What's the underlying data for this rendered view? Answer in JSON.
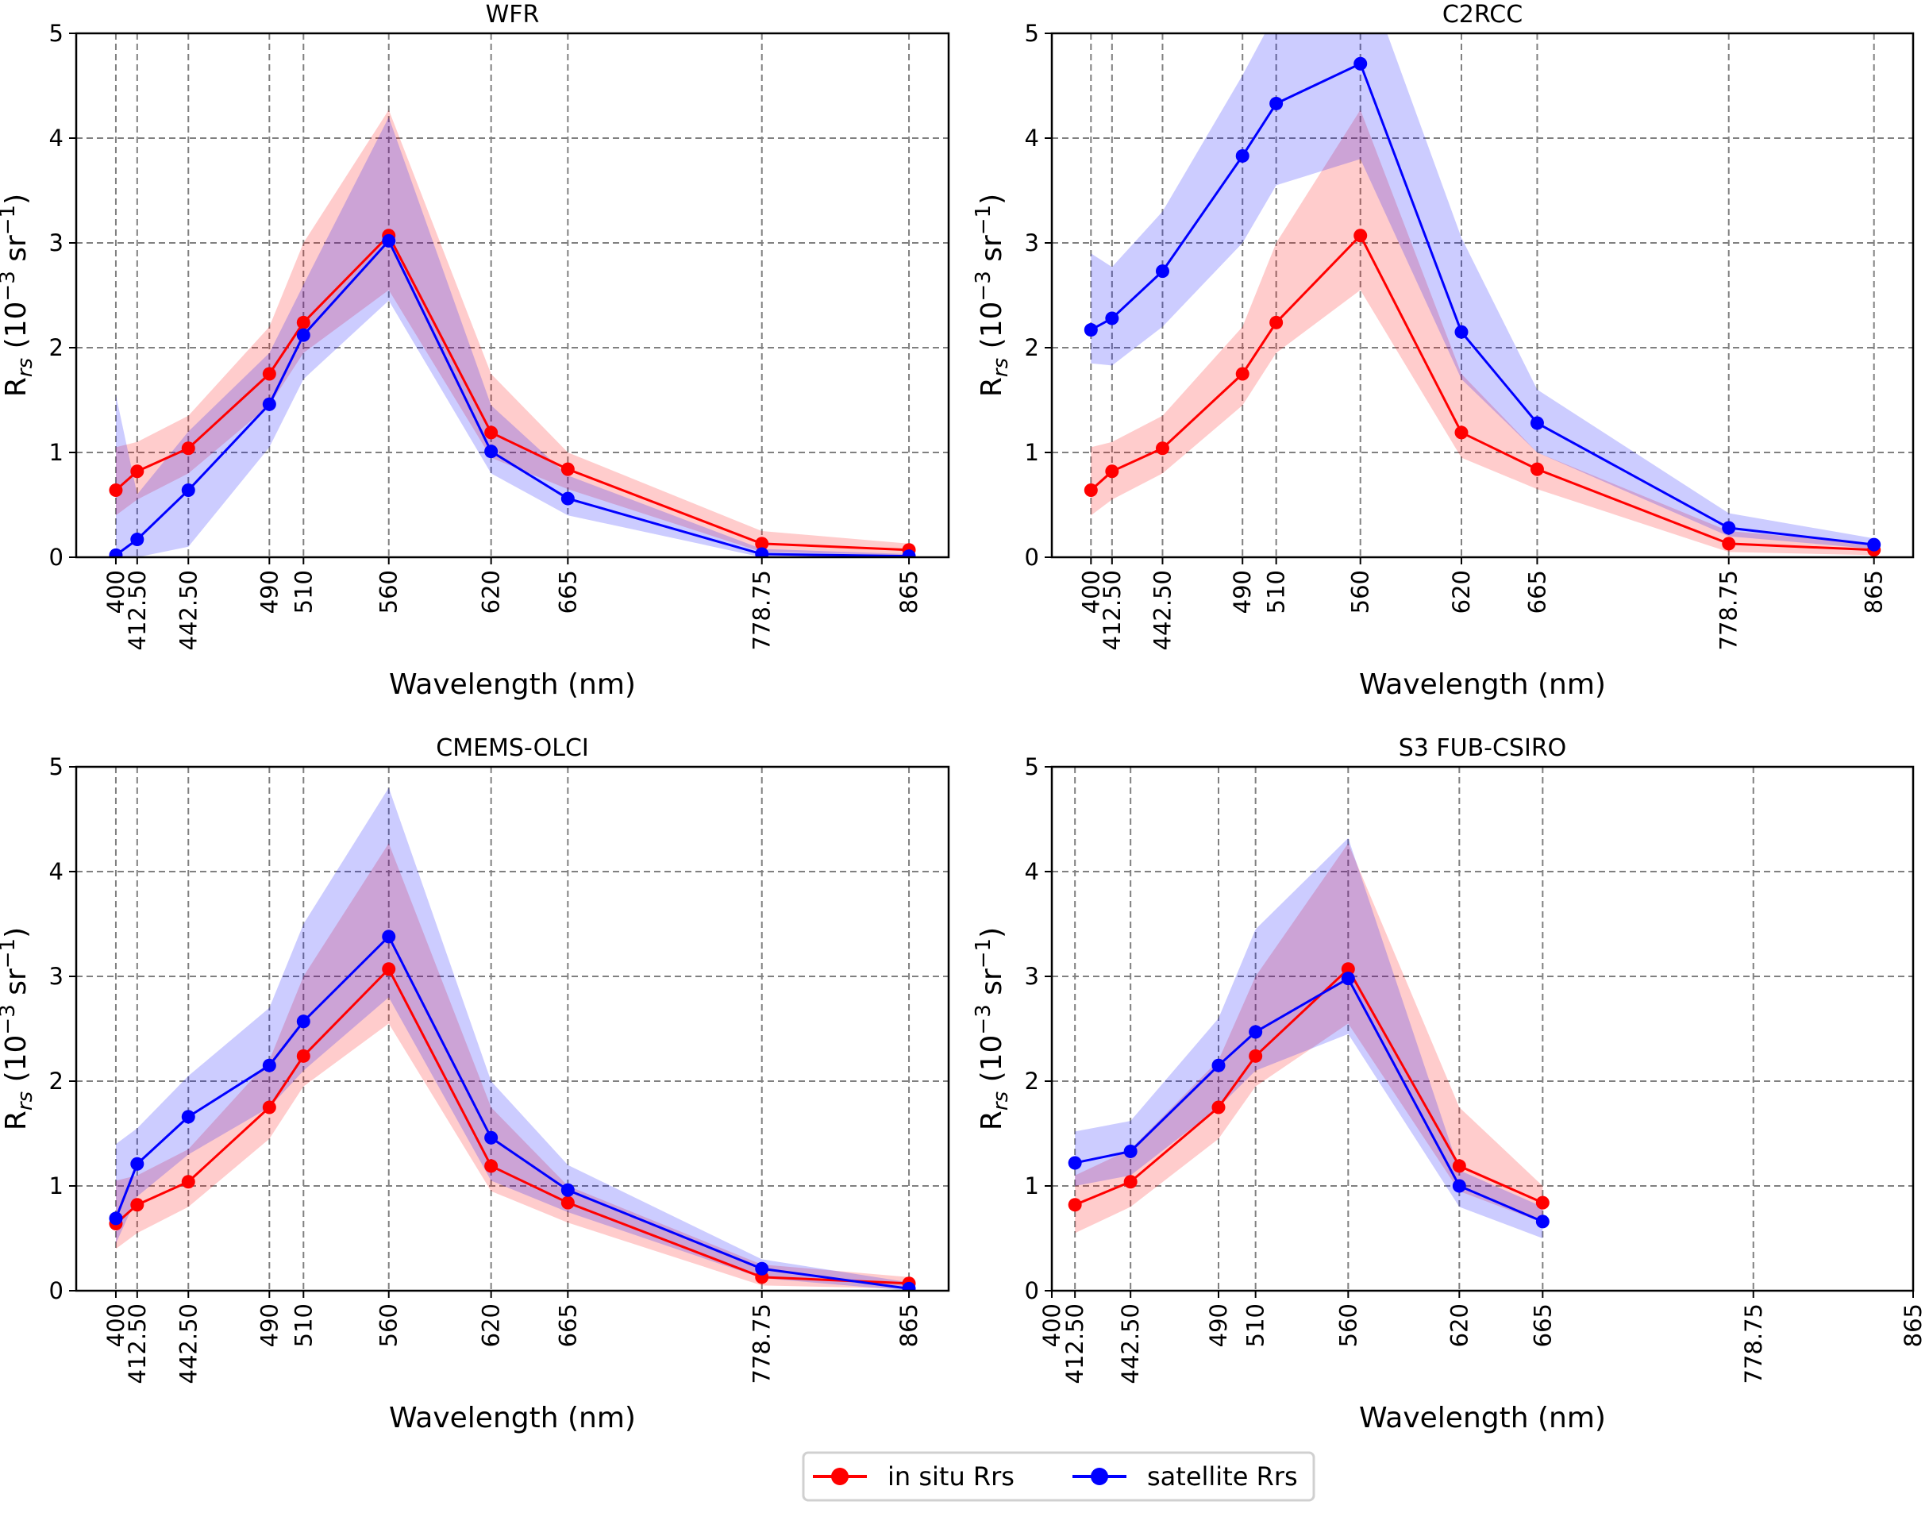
{
  "chart_data": [
    {
      "type": "line",
      "title": "WFR",
      "xlabel": "Wavelength (nm)",
      "ylabel": "R_rs (10^-3 sr^-1)",
      "xlim": [
        376.75,
        888.25
      ],
      "ylim": [
        0,
        5
      ],
      "x": [
        400,
        412.5,
        442.5,
        490,
        510,
        560,
        620,
        665,
        778.75,
        865
      ],
      "xtick_labels": [
        "400",
        "412.50",
        "442.50",
        "490",
        "510",
        "560",
        "620",
        "665",
        "778.75",
        "865"
      ],
      "grid": true,
      "series": [
        {
          "name": "in situ Rrs",
          "values": [
            0.64,
            0.82,
            1.04,
            1.75,
            2.24,
            3.07,
            1.19,
            0.84,
            0.13,
            0.07
          ],
          "lower": [
            0.4,
            0.55,
            0.8,
            1.45,
            1.95,
            2.55,
            0.95,
            0.65,
            0.05,
            0.02
          ],
          "upper": [
            1.05,
            1.1,
            1.35,
            2.2,
            3.0,
            4.27,
            1.75,
            1.0,
            0.25,
            0.13
          ]
        },
        {
          "name": "satellite Rrs",
          "values": [
            0.02,
            0.17,
            0.64,
            1.46,
            2.12,
            3.02,
            1.01,
            0.56,
            0.03,
            0.01
          ],
          "lower": [
            0.0,
            0.0,
            0.1,
            1.05,
            1.7,
            2.45,
            0.8,
            0.4,
            0.0,
            0.0
          ],
          "upper": [
            1.55,
            0.6,
            1.2,
            1.95,
            2.6,
            4.2,
            1.45,
            0.78,
            0.08,
            0.03
          ]
        }
      ]
    },
    {
      "type": "line",
      "title": "C2RCC",
      "xlabel": "Wavelength (nm)",
      "ylabel": "R_rs (10^-3 sr^-1)",
      "xlim": [
        376.75,
        888.25
      ],
      "ylim": [
        0,
        5
      ],
      "x": [
        400,
        412.5,
        442.5,
        490,
        510,
        560,
        620,
        665,
        778.75,
        865
      ],
      "xtick_labels": [
        "400",
        "412.50",
        "442.50",
        "490",
        "510",
        "560",
        "620",
        "665",
        "778.75",
        "865"
      ],
      "grid": true,
      "series": [
        {
          "name": "in situ Rrs",
          "values": [
            0.64,
            0.82,
            1.04,
            1.75,
            2.24,
            3.07,
            1.19,
            0.84,
            0.13,
            0.07
          ],
          "lower": [
            0.4,
            0.55,
            0.8,
            1.45,
            1.95,
            2.55,
            0.95,
            0.65,
            0.05,
            0.02
          ],
          "upper": [
            1.05,
            1.1,
            1.35,
            2.2,
            3.0,
            4.27,
            1.75,
            1.0,
            0.25,
            0.13
          ]
        },
        {
          "name": "satellite Rrs",
          "values": [
            2.17,
            2.28,
            2.73,
            3.83,
            4.33,
            4.71,
            2.15,
            1.28,
            0.28,
            0.12
          ],
          "lower": [
            1.85,
            1.83,
            2.2,
            3.0,
            3.55,
            3.8,
            1.7,
            1.0,
            0.2,
            0.08
          ],
          "upper": [
            2.9,
            2.77,
            3.3,
            4.6,
            5.2,
            5.7,
            3.05,
            1.6,
            0.42,
            0.18
          ]
        }
      ]
    },
    {
      "type": "line",
      "title": "CMEMS-OLCI",
      "xlabel": "Wavelength (nm)",
      "ylabel": "R_rs (10^-3 sr^-1)",
      "xlim": [
        376.75,
        888.25
      ],
      "ylim": [
        0,
        5
      ],
      "x": [
        400,
        412.5,
        442.5,
        490,
        510,
        560,
        620,
        665,
        778.75,
        865
      ],
      "xtick_labels": [
        "400",
        "412.50",
        "442.50",
        "490",
        "510",
        "560",
        "620",
        "665",
        "778.75",
        "865"
      ],
      "grid": true,
      "series": [
        {
          "name": "in situ Rrs",
          "values": [
            0.64,
            0.82,
            1.04,
            1.75,
            2.24,
            3.07,
            1.19,
            0.84,
            0.13,
            0.07
          ],
          "lower": [
            0.4,
            0.55,
            0.8,
            1.45,
            1.95,
            2.55,
            0.95,
            0.65,
            0.05,
            0.02
          ],
          "upper": [
            1.05,
            1.1,
            1.35,
            2.2,
            3.0,
            4.27,
            1.75,
            1.0,
            0.25,
            0.13
          ]
        },
        {
          "name": "satellite Rrs",
          "values": [
            0.69,
            1.21,
            1.66,
            2.15,
            2.57,
            3.38,
            1.46,
            0.96,
            0.21,
            0.02
          ],
          "lower": [
            0.45,
            0.9,
            1.3,
            1.75,
            2.1,
            2.8,
            1.05,
            0.75,
            0.12,
            0.0
          ],
          "upper": [
            1.4,
            1.55,
            2.05,
            2.7,
            3.5,
            4.8,
            2.0,
            1.2,
            0.3,
            0.08
          ]
        }
      ]
    },
    {
      "type": "line",
      "title": "S3 FUB-CSIRO",
      "xlabel": "Wavelength (nm)",
      "ylabel": "R_rs (10^-3 sr^-1)",
      "xlim": [
        400,
        865
      ],
      "ylim": [
        0,
        5
      ],
      "x": [
        400,
        412.5,
        442.5,
        490,
        510,
        560,
        620,
        665,
        778.75,
        865
      ],
      "xtick_labels": [
        "400",
        "412.50",
        "442.50",
        "490",
        "510",
        "560",
        "620",
        "665",
        "778.75",
        "865"
      ],
      "grid": true,
      "series": [
        {
          "name": "in situ Rrs",
          "values": [
            null,
            0.82,
            1.04,
            1.75,
            2.24,
            3.07,
            1.19,
            0.84,
            null,
            null
          ],
          "lower": [
            null,
            0.55,
            0.8,
            1.45,
            1.95,
            2.55,
            0.95,
            0.65,
            null,
            null
          ],
          "upper": [
            null,
            1.1,
            1.35,
            2.2,
            3.0,
            4.27,
            1.75,
            1.0,
            null,
            null
          ]
        },
        {
          "name": "satellite Rrs",
          "values": [
            null,
            1.22,
            1.33,
            2.15,
            2.47,
            2.98,
            1.0,
            0.66,
            null,
            null
          ],
          "lower": [
            null,
            1.0,
            1.1,
            1.75,
            2.1,
            2.45,
            0.8,
            0.5,
            null,
            null
          ],
          "upper": [
            null,
            1.52,
            1.62,
            2.6,
            3.45,
            4.32,
            1.15,
            0.8,
            null,
            null
          ]
        }
      ]
    }
  ],
  "yticks": [
    "0",
    "1",
    "2",
    "3",
    "4",
    "5"
  ],
  "ylabel_main": "R",
  "ylabel_sub": "rs",
  "ylabel_unit": " (10",
  "ylabel_exp1": "−3",
  "ylabel_mid": " sr",
  "ylabel_exp2": "−1",
  "ylabel_close": ")",
  "legend": {
    "placement": "bottom-center",
    "items": [
      "in situ Rrs",
      "satellite Rrs"
    ]
  },
  "colors": {
    "in_situ": "#ff0000",
    "satellite": "#0000ff",
    "in_situ_band": "rgba(255,0,0,0.2)",
    "satellite_band": "rgba(0,0,255,0.2)",
    "grid": "#808080"
  }
}
